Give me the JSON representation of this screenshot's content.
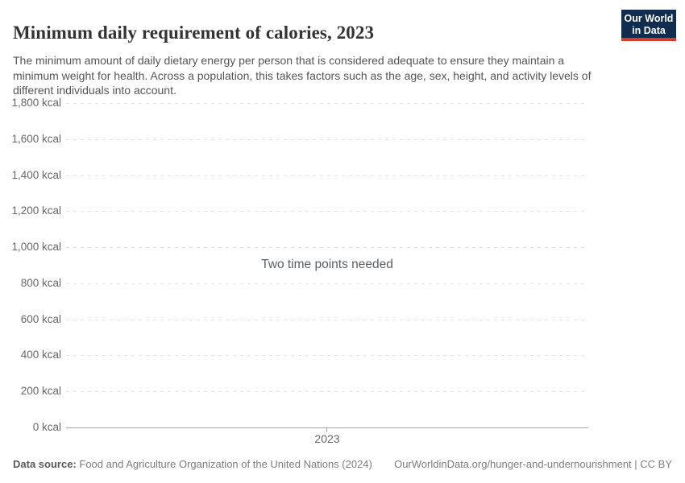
{
  "header": {
    "title": "Minimum daily requirement of calories, 2023",
    "subtitle": "The minimum amount of daily dietary energy per person that is considered adequate to ensure they maintain a minimum weight for health. Across a population, this takes factors such as the age, sex, height, and activity levels of different individuals into account.",
    "logo": {
      "line1": "Our World",
      "line2": "in Data",
      "bg_color": "#102d50",
      "accent_color": "#d73c2c"
    }
  },
  "chart_data": {
    "type": "line",
    "title": "Minimum daily requirement of calories, 2023",
    "series": [],
    "empty_message": "Two time points needed",
    "xlabel": "",
    "ylabel": "",
    "xticks": [
      "2023"
    ],
    "ylim": [
      0,
      1800
    ],
    "grid": true,
    "yticks": [
      {
        "value": 0,
        "label": "0 kcal"
      },
      {
        "value": 200,
        "label": "200 kcal"
      },
      {
        "value": 400,
        "label": "400 kcal"
      },
      {
        "value": 600,
        "label": "600 kcal"
      },
      {
        "value": 800,
        "label": "800 kcal"
      },
      {
        "value": 1000,
        "label": "1,000 kcal"
      },
      {
        "value": 1200,
        "label": "1,200 kcal"
      },
      {
        "value": 1400,
        "label": "1,400 kcal"
      },
      {
        "value": 1600,
        "label": "1,600 kcal"
      },
      {
        "value": 1800,
        "label": "1,800 kcal"
      }
    ]
  },
  "footer": {
    "datasource_label": "Data source:",
    "datasource_value": "Food and Agriculture Organization of the United Nations (2024)",
    "citation": "OurWorldinData.org/hunger-and-undernourishment | CC BY"
  }
}
